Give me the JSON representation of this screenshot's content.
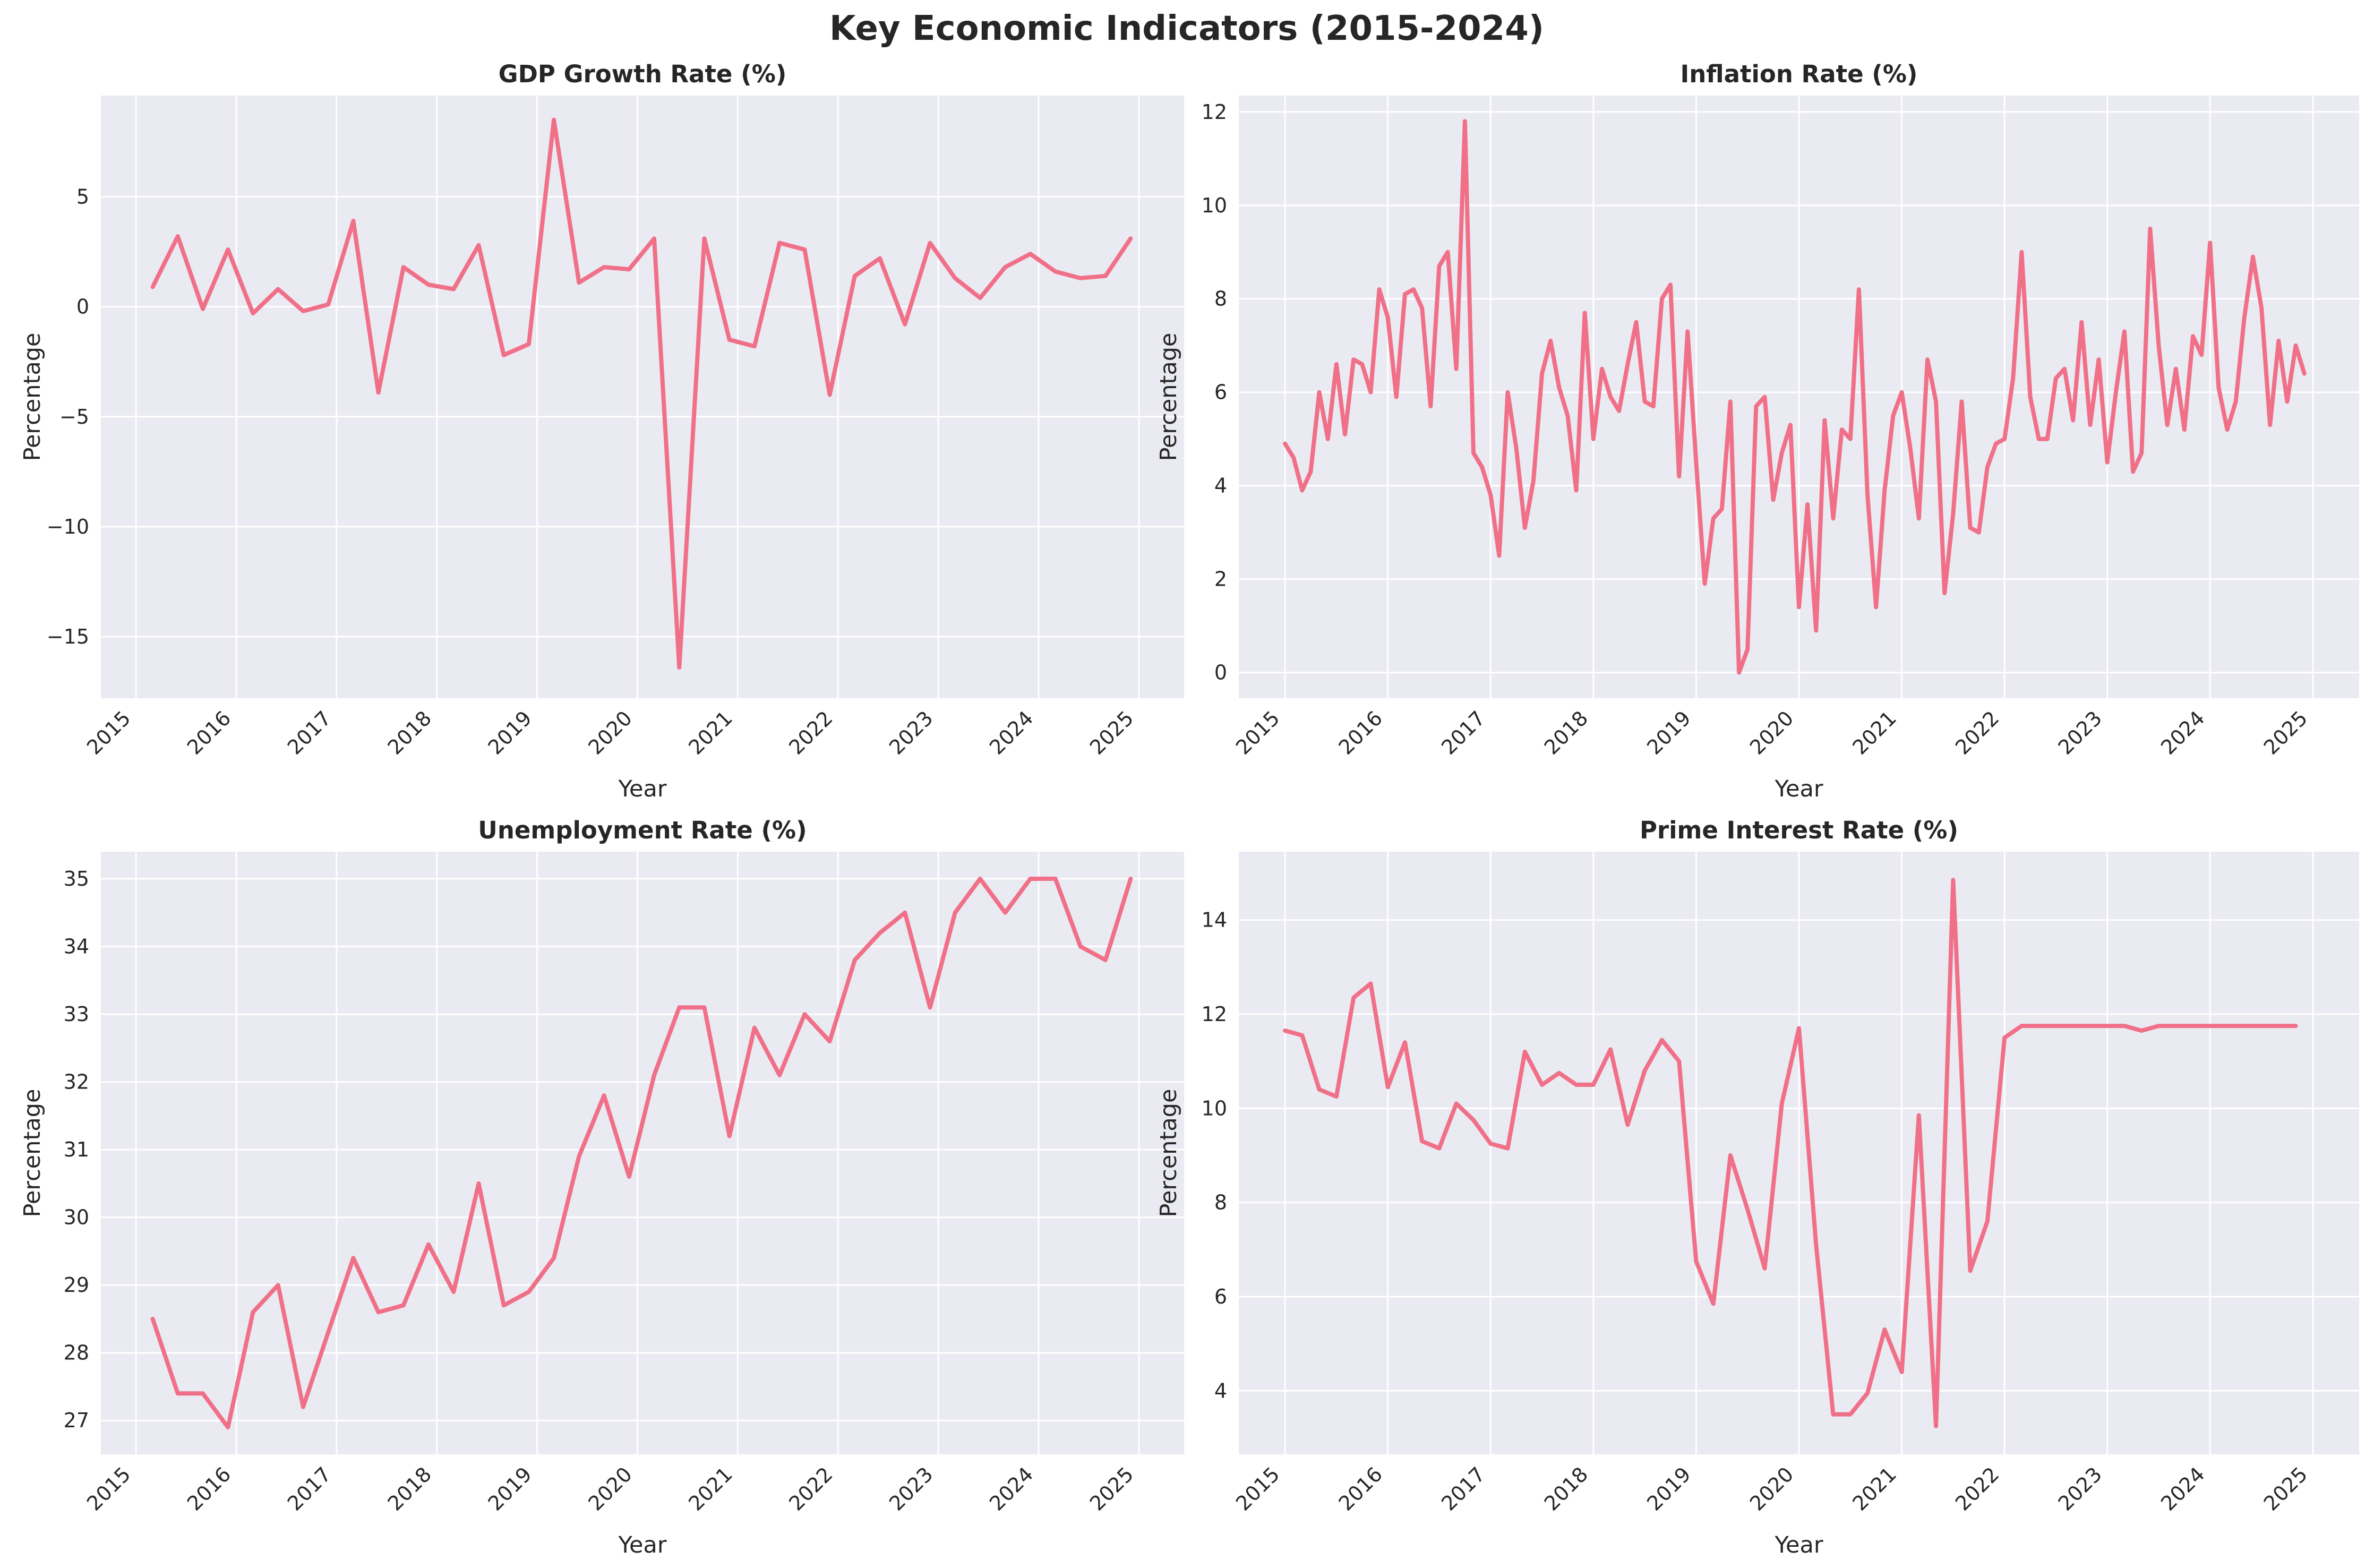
{
  "figure": {
    "title": "Key Economic Indicators (2015-2024)",
    "colors": {
      "line": "#f07088",
      "background": "#eaeaf2",
      "grid": "#ffffff",
      "text": "#262626"
    }
  },
  "chart_data": [
    {
      "type": "line",
      "title": "GDP Growth Rate (%)",
      "xlabel": "Year",
      "ylabel": "Percentage",
      "xlim": [
        2014.65,
        2025.45
      ],
      "ylim": [
        -17.8,
        9.6
      ],
      "xticks": [
        "2015",
        "2016",
        "2017",
        "2018",
        "2019",
        "2020",
        "2021",
        "2022",
        "2023",
        "2024",
        "2025"
      ],
      "yticks": [
        -15,
        -10,
        -5,
        0,
        5
      ],
      "ytick_labels": [
        "−15",
        "−10",
        "−5",
        "0",
        "5"
      ],
      "grid": true,
      "x": [
        "2015-03",
        "2015-06",
        "2015-09",
        "2015-12",
        "2016-03",
        "2016-06",
        "2016-09",
        "2016-12",
        "2017-03",
        "2017-06",
        "2017-09",
        "2017-12",
        "2018-03",
        "2018-06",
        "2018-09",
        "2018-12",
        "2019-03",
        "2019-06",
        "2019-09",
        "2019-12",
        "2020-03",
        "2020-06",
        "2020-09",
        "2020-12",
        "2021-03",
        "2021-06",
        "2021-09",
        "2021-12",
        "2022-03",
        "2022-06",
        "2022-09",
        "2022-12",
        "2023-03",
        "2023-06",
        "2023-09",
        "2023-12",
        "2024-03",
        "2024-06",
        "2024-09",
        "2024-12"
      ],
      "y": [
        0.9,
        3.2,
        -0.1,
        2.6,
        -0.3,
        0.8,
        -0.2,
        0.1,
        3.9,
        -3.9,
        1.8,
        1.0,
        0.8,
        2.8,
        -2.2,
        -1.7,
        8.5,
        1.1,
        1.8,
        1.7,
        3.1,
        -16.4,
        3.1,
        -1.5,
        -1.8,
        2.9,
        2.6,
        -4.0,
        1.4,
        2.2,
        -0.8,
        2.9,
        1.3,
        0.4,
        1.8,
        2.4,
        1.6,
        1.3,
        1.4,
        3.1
      ]
    },
    {
      "type": "line",
      "title": "Inflation Rate (%)",
      "xlabel": "Year",
      "ylabel": "Percentage",
      "xlim": [
        2014.55,
        2025.45
      ],
      "ylim": [
        -0.55,
        12.35
      ],
      "xticks": [
        "2015",
        "2016",
        "2017",
        "2018",
        "2019",
        "2020",
        "2021",
        "2022",
        "2023",
        "2024",
        "2025"
      ],
      "yticks": [
        0,
        2,
        4,
        6,
        8,
        10,
        12
      ],
      "ytick_labels": [
        "0",
        "2",
        "4",
        "6",
        "8",
        "10",
        "12"
      ],
      "grid": true,
      "x": [
        "2015-01",
        "2015-02",
        "2015-03",
        "2015-04",
        "2015-05",
        "2015-06",
        "2015-07",
        "2015-08",
        "2015-09",
        "2015-10",
        "2015-11",
        "2015-12",
        "2016-01",
        "2016-02",
        "2016-03",
        "2016-04",
        "2016-05",
        "2016-06",
        "2016-07",
        "2016-08",
        "2016-09",
        "2016-10",
        "2016-11",
        "2016-12",
        "2017-01",
        "2017-02",
        "2017-03",
        "2017-04",
        "2017-05",
        "2017-06",
        "2017-07",
        "2017-08",
        "2017-09",
        "2017-10",
        "2017-11",
        "2017-12",
        "2018-01",
        "2018-02",
        "2018-03",
        "2018-04",
        "2018-05",
        "2018-06",
        "2018-07",
        "2018-08",
        "2018-09",
        "2018-10",
        "2018-11",
        "2018-12",
        "2019-01",
        "2019-02",
        "2019-03",
        "2019-04",
        "2019-05",
        "2019-06",
        "2019-07",
        "2019-08",
        "2019-09",
        "2019-10",
        "2019-11",
        "2019-12",
        "2020-01",
        "2020-02",
        "2020-03",
        "2020-04",
        "2020-05",
        "2020-06",
        "2020-07",
        "2020-08",
        "2020-09",
        "2020-10",
        "2020-11",
        "2020-12",
        "2021-01",
        "2021-02",
        "2021-03",
        "2021-04",
        "2021-05",
        "2021-06",
        "2021-07",
        "2021-08",
        "2021-09",
        "2021-10",
        "2021-11",
        "2021-12",
        "2022-01",
        "2022-02",
        "2022-03",
        "2022-04",
        "2022-05",
        "2022-06",
        "2022-07",
        "2022-08",
        "2022-09",
        "2022-10",
        "2022-11",
        "2022-12",
        "2023-01",
        "2023-02",
        "2023-03",
        "2023-04",
        "2023-05",
        "2023-06",
        "2023-07",
        "2023-08",
        "2023-09",
        "2023-10",
        "2023-11",
        "2023-12",
        "2024-01",
        "2024-02",
        "2024-03",
        "2024-04",
        "2024-05",
        "2024-06",
        "2024-07",
        "2024-08",
        "2024-09",
        "2024-10",
        "2024-11",
        "2024-12"
      ],
      "y": [
        4.9,
        4.6,
        3.9,
        4.3,
        6.0,
        5.0,
        6.6,
        5.1,
        6.7,
        6.6,
        6.0,
        8.2,
        7.6,
        5.9,
        8.1,
        8.2,
        7.8,
        5.7,
        8.7,
        9.0,
        6.5,
        11.8,
        4.7,
        4.4,
        3.8,
        2.5,
        6.0,
        4.8,
        3.1,
        4.1,
        6.4,
        7.1,
        6.1,
        5.5,
        3.9,
        7.7,
        5.0,
        6.5,
        5.9,
        5.6,
        6.6,
        7.5,
        5.8,
        5.7,
        8.0,
        8.3,
        4.2,
        7.3,
        4.5,
        1.9,
        3.3,
        3.5,
        5.8,
        0.0,
        0.5,
        5.7,
        5.9,
        3.7,
        4.7,
        5.3,
        1.4,
        3.6,
        0.9,
        5.4,
        3.3,
        5.2,
        5.0,
        8.2,
        3.8,
        1.4,
        3.9,
        5.5,
        6.0,
        4.8,
        3.3,
        6.7,
        5.8,
        1.7,
        3.4,
        5.8,
        3.1,
        3.0,
        4.4,
        4.9,
        5.0,
        6.3,
        9.0,
        5.9,
        5.0,
        5.0,
        6.3,
        6.5,
        5.4,
        7.5,
        5.3,
        6.7,
        4.5,
        6.0,
        7.3,
        4.3,
        4.7,
        9.5,
        7.0,
        5.3,
        6.5,
        5.2,
        7.2,
        6.8,
        9.2,
        6.1,
        5.2,
        5.8,
        7.6,
        8.9,
        7.8,
        5.3,
        7.1,
        5.8,
        7.0,
        6.4
      ]
    },
    {
      "type": "line",
      "title": "Unemployment Rate (%)",
      "xlabel": "Year",
      "ylabel": "Percentage",
      "xlim": [
        2014.65,
        2025.45
      ],
      "ylim": [
        26.5,
        35.4
      ],
      "xticks": [
        "2015",
        "2016",
        "2017",
        "2018",
        "2019",
        "2020",
        "2021",
        "2022",
        "2023",
        "2024",
        "2025"
      ],
      "yticks": [
        27,
        28,
        29,
        30,
        31,
        32,
        33,
        34,
        35
      ],
      "ytick_labels": [
        "27",
        "28",
        "29",
        "30",
        "31",
        "32",
        "33",
        "34",
        "35"
      ],
      "grid": true,
      "x": [
        "2015-03",
        "2015-06",
        "2015-09",
        "2015-12",
        "2016-03",
        "2016-06",
        "2016-09",
        "2016-12",
        "2017-03",
        "2017-06",
        "2017-09",
        "2017-12",
        "2018-03",
        "2018-06",
        "2018-09",
        "2018-12",
        "2019-03",
        "2019-06",
        "2019-09",
        "2019-12",
        "2020-03",
        "2020-06",
        "2020-09",
        "2020-12",
        "2021-03",
        "2021-06",
        "2021-09",
        "2021-12",
        "2022-03",
        "2022-06",
        "2022-09",
        "2022-12",
        "2023-03",
        "2023-06",
        "2023-09",
        "2023-12",
        "2024-03",
        "2024-06",
        "2024-09",
        "2024-12"
      ],
      "y": [
        28.5,
        27.4,
        27.4,
        26.9,
        28.6,
        29.0,
        27.2,
        28.3,
        29.4,
        28.6,
        28.7,
        29.6,
        28.9,
        30.5,
        28.7,
        28.9,
        29.4,
        30.9,
        31.8,
        30.6,
        32.1,
        33.1,
        33.1,
        31.2,
        32.8,
        32.1,
        33.0,
        32.6,
        33.8,
        34.2,
        34.5,
        33.1,
        34.5,
        35.0,
        34.5,
        35.0,
        35.0,
        34.0,
        33.8,
        35.0
      ]
    },
    {
      "type": "line",
      "title": "Prime Interest Rate (%)",
      "xlabel": "Year",
      "ylabel": "Percentage",
      "xlim": [
        2014.55,
        2025.45
      ],
      "ylim": [
        2.65,
        15.45
      ],
      "xticks": [
        "2015",
        "2016",
        "2017",
        "2018",
        "2019",
        "2020",
        "2021",
        "2022",
        "2023",
        "2024",
        "2025"
      ],
      "yticks": [
        4,
        6,
        8,
        10,
        12,
        14
      ],
      "ytick_labels": [
        "4",
        "6",
        "8",
        "10",
        "12",
        "14"
      ],
      "grid": true,
      "x": [
        "2015-01",
        "2015-03",
        "2015-05",
        "2015-07",
        "2015-09",
        "2015-11",
        "2016-01",
        "2016-03",
        "2016-05",
        "2016-07",
        "2016-09",
        "2016-11",
        "2017-01",
        "2017-03",
        "2017-05",
        "2017-07",
        "2017-09",
        "2017-11",
        "2018-01",
        "2018-03",
        "2018-05",
        "2018-07",
        "2018-09",
        "2018-11",
        "2019-01",
        "2019-03",
        "2019-05",
        "2019-07",
        "2019-09",
        "2019-11",
        "2020-01",
        "2020-03",
        "2020-05",
        "2020-07",
        "2020-09",
        "2020-11",
        "2021-01",
        "2021-03",
        "2021-05",
        "2021-07",
        "2021-09",
        "2021-11",
        "2022-01",
        "2022-03",
        "2022-05",
        "2022-07",
        "2022-09",
        "2022-11",
        "2023-01",
        "2023-03",
        "2023-05",
        "2023-07",
        "2023-09",
        "2023-11",
        "2024-01",
        "2024-03",
        "2024-05",
        "2024-07",
        "2024-09",
        "2024-11"
      ],
      "y": [
        11.65,
        11.55,
        10.4,
        10.25,
        12.35,
        12.65,
        10.45,
        11.4,
        9.3,
        9.15,
        10.1,
        9.75,
        9.25,
        9.15,
        11.2,
        10.5,
        10.75,
        10.5,
        10.5,
        11.25,
        9.65,
        10.8,
        11.45,
        11.0,
        6.75,
        5.85,
        9.0,
        7.85,
        6.6,
        10.1,
        11.7,
        7.1,
        3.5,
        3.5,
        3.95,
        5.3,
        4.4,
        9.85,
        3.25,
        14.85,
        6.55,
        7.6,
        11.5,
        11.75,
        11.75,
        11.75,
        11.75,
        11.75,
        11.75,
        11.75,
        11.65,
        11.75,
        11.75,
        11.75,
        11.75,
        11.75,
        11.75,
        11.75,
        11.75,
        11.75
      ]
    }
  ]
}
